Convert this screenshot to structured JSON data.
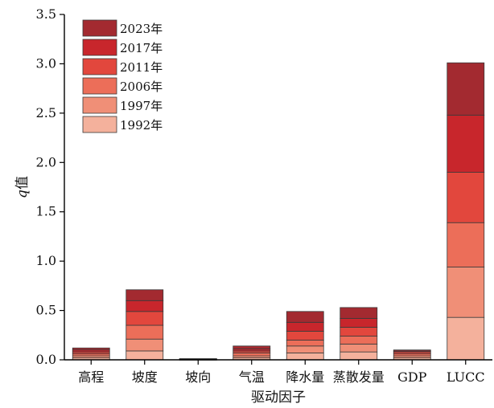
{
  "chart_data": {
    "type": "bar",
    "stacked": true,
    "categories": [
      "高程",
      "坡度",
      "坡向",
      "气温",
      "降水量",
      "蒸散发量",
      "GDP",
      "LUCC"
    ],
    "xlabel": "驱动因子",
    "ylabel_italic": "q",
    "ylabel_rest": "值",
    "ylim": [
      0,
      3.5
    ],
    "yticks": [
      "0.0",
      "0.5",
      "1.0",
      "1.5",
      "2.0",
      "2.5",
      "3.0",
      "3.5"
    ],
    "legend_position": "top-left",
    "series": [
      {
        "name": "1992年",
        "color": "#F4B19C",
        "values": [
          0.02,
          0.09,
          0.002,
          0.02,
          0.07,
          0.08,
          0.02,
          0.43
        ]
      },
      {
        "name": "1997年",
        "color": "#F08F77",
        "values": [
          0.02,
          0.12,
          0.002,
          0.02,
          0.07,
          0.08,
          0.02,
          0.51
        ]
      },
      {
        "name": "2006年",
        "color": "#EC6E59",
        "values": [
          0.02,
          0.14,
          0.002,
          0.03,
          0.06,
          0.08,
          0.02,
          0.45
        ]
      },
      {
        "name": "2011年",
        "color": "#E2473D",
        "values": [
          0.02,
          0.14,
          0.002,
          0.02,
          0.09,
          0.09,
          0.02,
          0.51
        ]
      },
      {
        "name": "2017年",
        "color": "#C8262C",
        "values": [
          0.02,
          0.11,
          0.002,
          0.02,
          0.09,
          0.09,
          0.01,
          0.58
        ]
      },
      {
        "name": "2023年",
        "color": "#A32A30",
        "values": [
          0.02,
          0.11,
          0.002,
          0.03,
          0.11,
          0.11,
          0.01,
          0.53
        ]
      }
    ]
  }
}
